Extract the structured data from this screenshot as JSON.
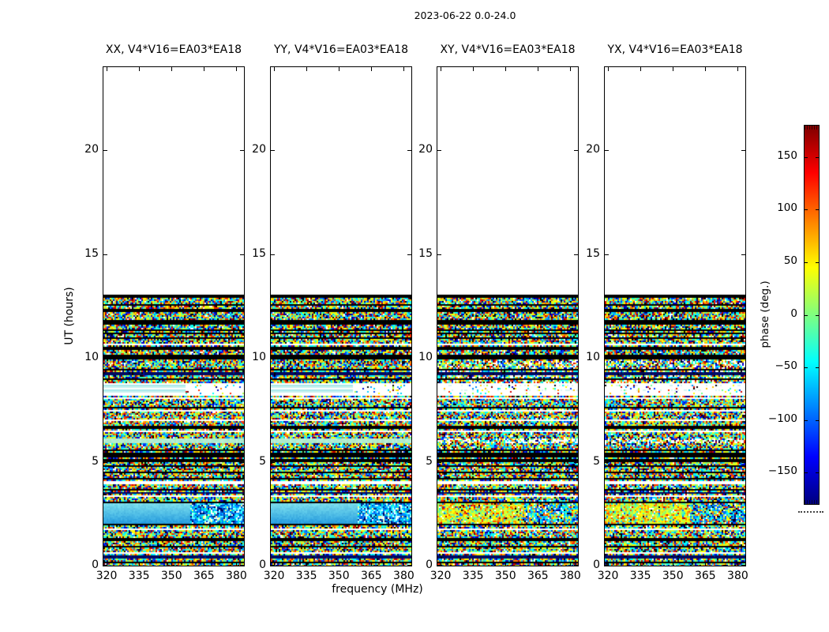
{
  "figure": {
    "suptitle": "2023-06-22 0.0-24.0",
    "xlabel": "frequency (MHz)",
    "ylabel": "UT (hours)",
    "colorbar_label": "phase (deg.)"
  },
  "chart_data": {
    "type": "heatmap",
    "title": "2023-06-22 0.0-24.0",
    "subplot_grid": "1x4",
    "xlabel": "frequency (MHz)",
    "ylabel": "UT (hours)",
    "xlim": [
      318.5,
      383.5
    ],
    "ylim": [
      0,
      24
    ],
    "x_ticks": [
      320,
      335,
      350,
      365,
      380
    ],
    "y_ticks": [
      0,
      5,
      10,
      15,
      20
    ],
    "grid": false,
    "panels": [
      {
        "pol": "XX",
        "label": "XX, V4*V16=EA03*EA18"
      },
      {
        "pol": "YY",
        "label": "YY, V4*V16=EA03*EA18"
      },
      {
        "pol": "XY",
        "label": "XY, V4*V16=EA03*EA18"
      },
      {
        "pol": "YX",
        "label": "YX, V4*V16=EA03*EA18"
      }
    ],
    "baseline": "V4*V16=EA03*EA18",
    "colorbar": {
      "label": "phase (deg.)",
      "ticks": [
        150,
        100,
        50,
        0,
        -50,
        -100,
        -150
      ],
      "vmin": -180,
      "vmax": 180,
      "colormap": "jet",
      "position": "right"
    },
    "data_coverage": {
      "ut_start": 0.0,
      "ut_end": 13.05,
      "note": "no data (white) above UT 13.05; below it, dense random phase noise (full -180..180 range) in horizontal time bands"
    },
    "features": [
      {
        "ut_range": [
          12.93,
          13.05
        ],
        "desc": "black stripe at top edge of data in all panels"
      },
      {
        "ut_range": [
          8.28,
          8.72
        ],
        "desc": "smooth pale-cyan lines with white gaps in XX/YY; sparse dots on white in XY/YX"
      },
      {
        "ut_range": [
          5.86,
          6.1
        ],
        "desc": "smooth pale cyan-green band in XX/YY"
      },
      {
        "ut_range": [
          4.98,
          5.42
        ],
        "desc": "thick black flagged cluster in all panels"
      },
      {
        "ut_range": [
          2.02,
          2.98
        ],
        "desc": "XX/YY: smooth cyan-blue band over left ~62% of the bandwidth with blue speckle noise on the right; XY/YX: yellow-green noise left, blue/cyan speckle right"
      },
      {
        "ut_range": [
          0.0,
          13.05
        ],
        "desc": "many thin black flag stripes and white gaps repeating every few minutes of UT"
      }
    ]
  }
}
